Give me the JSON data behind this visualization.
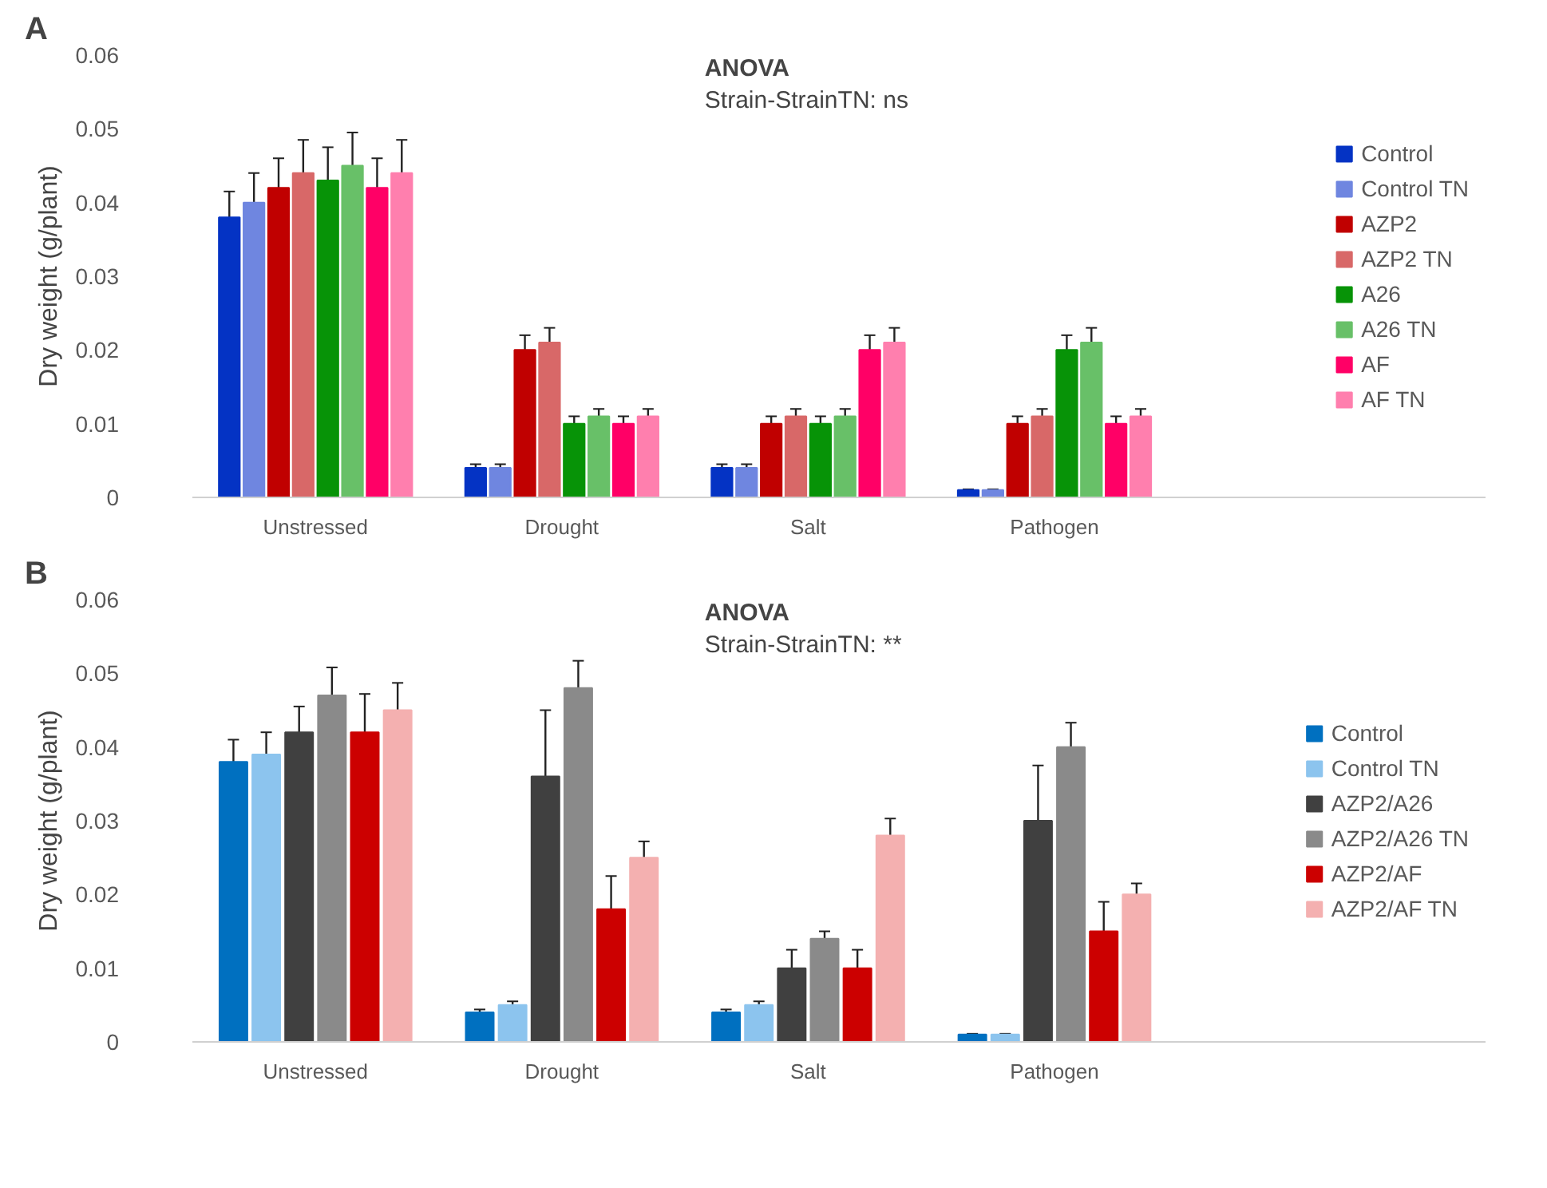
{
  "chart_data": [
    {
      "type": "bar",
      "title": "ANOVA",
      "subtitle": "Strain-StrainTN: ns",
      "ylabel": "Dry weight (g/plant)",
      "annotations": [
        "A"
      ],
      "categories": [
        "Unstressed",
        "Drought",
        "Salt",
        "Pathogen"
      ],
      "ylim": [
        0,
        0.06
      ],
      "yticks": [
        0,
        0.01,
        0.02,
        0.03,
        0.04,
        0.05,
        0.06
      ],
      "grid": false,
      "legend": "right",
      "series": [
        {
          "name": "Control",
          "color": "#0433c4",
          "values": [
            0.038,
            0.004,
            0.004,
            0.001
          ],
          "errors": [
            0.0035,
            0.0005,
            0.0005,
            0.0001
          ]
        },
        {
          "name": "Control TN",
          "color": "#6f86e0",
          "values": [
            0.04,
            0.004,
            0.004,
            0.001
          ],
          "errors": [
            0.004,
            0.0005,
            0.0005,
            0.0001
          ]
        },
        {
          "name": "AZP2",
          "color": "#c00000",
          "values": [
            0.042,
            0.02,
            0.01,
            0.01
          ],
          "errors": [
            0.004,
            0.002,
            0.001,
            0.001
          ]
        },
        {
          "name": "AZP2 TN",
          "color": "#d86868",
          "values": [
            0.044,
            0.021,
            0.011,
            0.011
          ],
          "errors": [
            0.0045,
            0.002,
            0.001,
            0.001
          ]
        },
        {
          "name": "A26",
          "color": "#079307",
          "values": [
            0.043,
            0.01,
            0.01,
            0.02
          ],
          "errors": [
            0.0045,
            0.001,
            0.001,
            0.002
          ]
        },
        {
          "name": "A26 TN",
          "color": "#68c068",
          "values": [
            0.045,
            0.011,
            0.011,
            0.021
          ],
          "errors": [
            0.0045,
            0.001,
            0.001,
            0.002
          ]
        },
        {
          "name": "AF",
          "color": "#ff0066",
          "values": [
            0.042,
            0.01,
            0.02,
            0.01
          ],
          "errors": [
            0.004,
            0.001,
            0.002,
            0.001
          ]
        },
        {
          "name": "AF TN",
          "color": "#ff7fae",
          "values": [
            0.044,
            0.011,
            0.021,
            0.011
          ],
          "errors": [
            0.0045,
            0.001,
            0.002,
            0.001
          ]
        }
      ]
    },
    {
      "type": "bar",
      "title": "ANOVA",
      "subtitle": "Strain-StrainTN: **",
      "ylabel": "Dry weight (g/plant)",
      "annotations": [
        "B"
      ],
      "categories": [
        "Unstressed",
        "Drought",
        "Salt",
        "Pathogen"
      ],
      "ylim": [
        0,
        0.06
      ],
      "yticks": [
        0,
        0.01,
        0.02,
        0.03,
        0.04,
        0.05,
        0.06
      ],
      "grid": false,
      "legend": "right",
      "series": [
        {
          "name": "Control",
          "color": "#0070c0",
          "values": [
            0.038,
            0.004,
            0.004,
            0.001
          ],
          "errors": [
            0.003,
            0.0004,
            0.0004,
            0.0001
          ]
        },
        {
          "name": "Control TN",
          "color": "#8cc4ee",
          "values": [
            0.039,
            0.005,
            0.005,
            0.001
          ],
          "errors": [
            0.003,
            0.0005,
            0.0005,
            0.0001
          ]
        },
        {
          "name": "AZP2/A26",
          "color": "#404040",
          "values": [
            0.042,
            0.036,
            0.01,
            0.03
          ],
          "errors": [
            0.0035,
            0.009,
            0.0025,
            0.0075
          ]
        },
        {
          "name": "AZP2/A26 TN",
          "color": "#8a8a8a",
          "values": [
            0.047,
            0.048,
            0.014,
            0.04
          ],
          "errors": [
            0.0038,
            0.0037,
            0.001,
            0.0033
          ]
        },
        {
          "name": "AZP2/AF",
          "color": "#cc0000",
          "values": [
            0.042,
            0.018,
            0.01,
            0.015
          ],
          "errors": [
            0.0052,
            0.0045,
            0.0025,
            0.004
          ]
        },
        {
          "name": "AZP2/AF TN",
          "color": "#f4b0b0",
          "values": [
            0.045,
            0.025,
            0.028,
            0.02
          ],
          "errors": [
            0.0037,
            0.0022,
            0.0023,
            0.0015
          ]
        }
      ]
    }
  ]
}
